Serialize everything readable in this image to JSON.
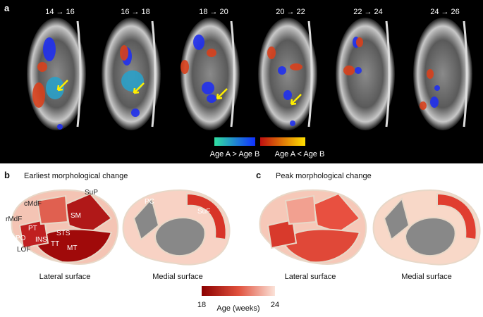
{
  "panel_a": {
    "label": "a",
    "slices": [
      "14 → 16",
      "16 → 18",
      "18 → 20",
      "20 → 22",
      "22 → 24",
      "24 → 26"
    ],
    "colorbar_labels": [
      "Age A > Age B",
      "Age A < Age B"
    ]
  },
  "panel_b": {
    "label": "b",
    "title": "Earliest morphological change",
    "regions": [
      "SuP",
      "cMdF",
      "SM",
      "rMdF",
      "PT",
      "STS",
      "PO",
      "INS",
      "TT",
      "LOF",
      "MT",
      "PC",
      "SuF"
    ],
    "views": [
      "Lateral surface",
      "Medial surface"
    ]
  },
  "panel_c": {
    "label": "c",
    "title": "Peak morphological change",
    "views": [
      "Lateral surface",
      "Medial surface"
    ]
  },
  "colorbar": {
    "ticks": [
      18,
      24
    ],
    "title": "Age (weeks)"
  }
}
